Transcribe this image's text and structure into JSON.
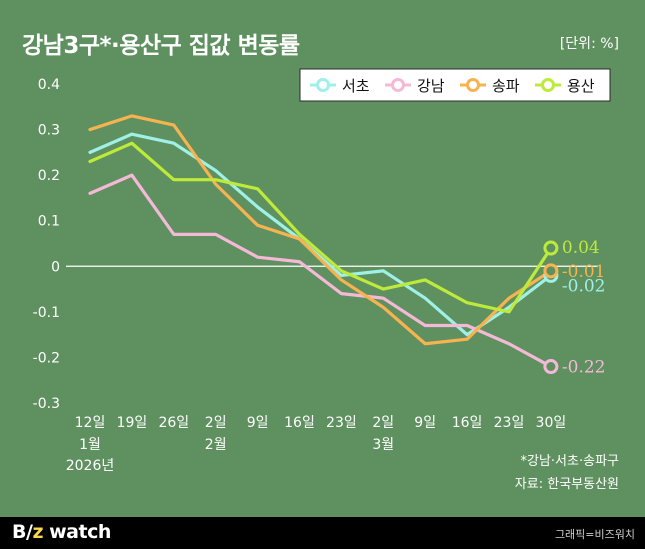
{
  "title": "강남3구*·용산구 집값 변동률",
  "unit": "[단위: %]",
  "note": "*강남·서초·송파구",
  "source": "자료: 한국부동산원",
  "brand": {
    "part1": "B",
    "part2": "/",
    "part3": "z",
    "part4": " watch"
  },
  "credit": "그래픽=비즈워치",
  "chart_data": {
    "type": "line",
    "categories": [
      "12일",
      "19일",
      "26일",
      "2일",
      "9일",
      "16일",
      "23일",
      "2일",
      "9일",
      "16일",
      "23일",
      "30일"
    ],
    "category_sublabels": [
      {
        "index": 0,
        "lines": [
          "1월",
          "2026년"
        ]
      },
      {
        "index": 3,
        "lines": [
          "2월"
        ]
      },
      {
        "index": 7,
        "lines": [
          "3월"
        ]
      }
    ],
    "ylim": [
      -0.3,
      0.4
    ],
    "yticks": [
      "0.4",
      "0.3",
      "0.2",
      "0.1",
      "0",
      "-0.1",
      "-0.2",
      "-0.3"
    ],
    "ytick_values": [
      0.4,
      0.3,
      0.2,
      0.1,
      0,
      -0.1,
      -0.2,
      -0.3
    ],
    "legend_position": "top-right",
    "series": [
      {
        "name": "서초",
        "color": "#9ff0e6",
        "values": [
          0.25,
          0.29,
          0.27,
          0.21,
          0.13,
          0.06,
          -0.02,
          -0.01,
          -0.07,
          -0.15,
          -0.09,
          -0.02
        ],
        "end_label": "-0.02"
      },
      {
        "name": "강남",
        "color": "#f4b9d7",
        "values": [
          0.16,
          0.2,
          0.07,
          0.07,
          0.02,
          0.01,
          -0.06,
          -0.07,
          -0.13,
          -0.13,
          -0.17,
          -0.22
        ],
        "end_label": "-0.22"
      },
      {
        "name": "송파",
        "color": "#f6b350",
        "values": [
          0.3,
          0.33,
          0.31,
          0.18,
          0.09,
          0.06,
          -0.03,
          -0.09,
          -0.17,
          -0.16,
          -0.07,
          -0.01
        ],
        "end_label": "-0.01"
      },
      {
        "name": "용산",
        "color": "#bdea3b",
        "values": [
          0.23,
          0.27,
          0.19,
          0.19,
          0.17,
          0.07,
          -0.01,
          -0.05,
          -0.03,
          -0.08,
          -0.1,
          0.04
        ],
        "end_label": "0.04"
      }
    ]
  }
}
